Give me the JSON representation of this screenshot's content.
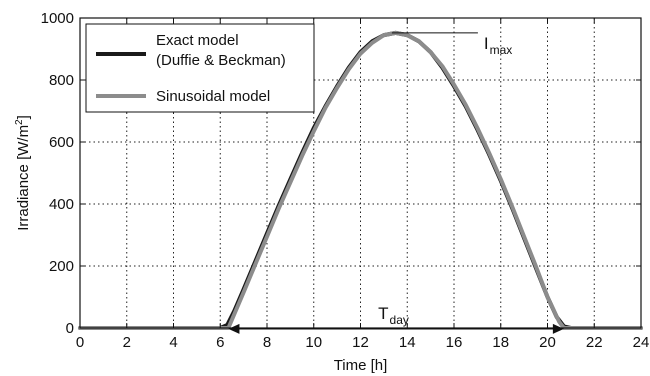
{
  "chart_data": {
    "type": "line",
    "xlabel": "Time [h]",
    "ylabel": {
      "main": "Irradiance [W/m",
      "sup": "2",
      "end": "]"
    },
    "xlim": [
      0,
      24
    ],
    "ylim": [
      0,
      1000
    ],
    "xticks": [
      0,
      2,
      4,
      6,
      8,
      10,
      12,
      14,
      16,
      18,
      20,
      22,
      24
    ],
    "yticks": [
      0,
      200,
      400,
      600,
      800,
      1000
    ],
    "grid": true,
    "legend_position": "top-left",
    "series": [
      {
        "name": "Exact model\n(Duffie & Beckman)",
        "color": "#1a1a1a",
        "x": [
          0,
          6.0,
          6.3,
          6.6,
          7,
          7.5,
          8,
          8.5,
          9,
          9.5,
          10,
          10.5,
          11,
          11.5,
          12,
          12.5,
          13,
          13.5,
          14,
          14.5,
          15,
          15.5,
          16,
          16.5,
          17,
          17.5,
          18,
          18.5,
          19,
          19.5,
          20,
          20.4,
          20.7,
          21,
          24
        ],
        "y": [
          0,
          0,
          10,
          55,
          125,
          215,
          305,
          395,
          480,
          565,
          645,
          715,
          780,
          840,
          890,
          925,
          945,
          952,
          945,
          925,
          890,
          840,
          780,
          715,
          640,
          560,
          475,
          385,
          290,
          195,
          100,
          35,
          5,
          0,
          0
        ]
      },
      {
        "name": "Sinusoidal model",
        "color": "#8c8c8c",
        "x": [
          0,
          6.35,
          7,
          7.5,
          8,
          8.5,
          9,
          9.5,
          10,
          10.5,
          11,
          11.5,
          12,
          12.5,
          13,
          13.5,
          14,
          14.5,
          15,
          15.5,
          16,
          16.5,
          17,
          17.5,
          18,
          18.5,
          19,
          19.5,
          20,
          20.5,
          20.7,
          24
        ],
        "y": [
          0,
          0,
          115,
          205,
          295,
          385,
          470,
          555,
          635,
          710,
          775,
          835,
          885,
          920,
          945,
          952,
          945,
          925,
          890,
          845,
          785,
          720,
          645,
          565,
          480,
          390,
          295,
          200,
          100,
          20,
          0,
          0
        ]
      }
    ],
    "annotations": {
      "imax": {
        "main": "I",
        "sub": "max",
        "x": 13.6,
        "y": 952
      },
      "tday": {
        "main": "T",
        "sub": "day",
        "x_start": 6.35,
        "x_end": 20.7,
        "y": 52
      }
    }
  }
}
